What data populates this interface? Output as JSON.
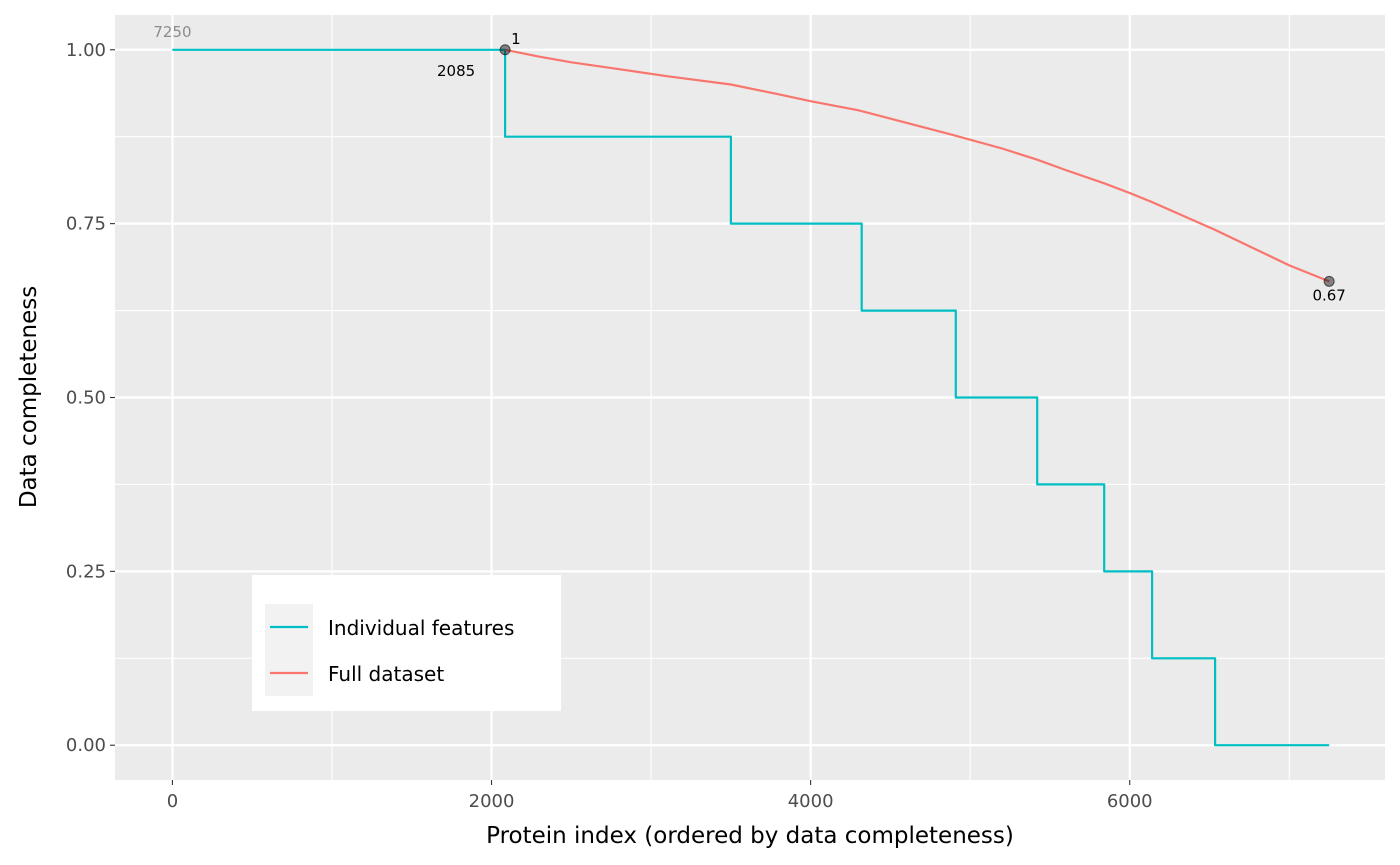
{
  "chart_data": {
    "type": "line",
    "title": "",
    "xlabel": "Protein index (ordered by data completeness)",
    "ylabel": "Data completeness",
    "xlim": [
      -360,
      7600
    ],
    "ylim": [
      -0.05,
      1.05
    ],
    "x_ticks": [
      0,
      2000,
      4000,
      6000
    ],
    "x_tick_labels": [
      "0",
      "2000",
      "4000",
      "6000"
    ],
    "y_ticks": [
      0,
      0.25,
      0.5,
      0.75,
      1.0
    ],
    "y_tick_labels": [
      "0.00",
      "0.25",
      "0.50",
      "0.75",
      "1.00"
    ],
    "grid": true,
    "background": "#ebebeb",
    "legend_position": "bottom-left inside",
    "series": [
      {
        "name": "Individual features",
        "color": "#00bfc4",
        "line_style": "step",
        "points": [
          [
            0,
            1.0
          ],
          [
            2085,
            1.0
          ],
          [
            2085,
            0.875
          ],
          [
            3500,
            0.875
          ],
          [
            3500,
            0.75
          ],
          [
            4320,
            0.75
          ],
          [
            4320,
            0.625
          ],
          [
            4910,
            0.625
          ],
          [
            4910,
            0.5
          ],
          [
            5420,
            0.5
          ],
          [
            5420,
            0.375
          ],
          [
            5840,
            0.375
          ],
          [
            5840,
            0.25
          ],
          [
            6140,
            0.25
          ],
          [
            6140,
            0.125
          ],
          [
            6535,
            0.125
          ],
          [
            6535,
            0.0
          ],
          [
            7250,
            0.0
          ]
        ]
      },
      {
        "name": "Full dataset",
        "color": "#f8766d",
        "line_style": "line",
        "points": [
          [
            2085,
            1.0
          ],
          [
            2300,
            0.99
          ],
          [
            2500,
            0.982
          ],
          [
            2800,
            0.972
          ],
          [
            3100,
            0.962
          ],
          [
            3500,
            0.95
          ],
          [
            3800,
            0.936
          ],
          [
            4000,
            0.926
          ],
          [
            4300,
            0.913
          ],
          [
            4600,
            0.895
          ],
          [
            4900,
            0.877
          ],
          [
            5200,
            0.858
          ],
          [
            5420,
            0.842
          ],
          [
            5600,
            0.827
          ],
          [
            5840,
            0.808
          ],
          [
            6000,
            0.794
          ],
          [
            6140,
            0.781
          ],
          [
            6535,
            0.741
          ],
          [
            6800,
            0.712
          ],
          [
            7000,
            0.69
          ],
          [
            7250,
            0.667
          ]
        ]
      }
    ],
    "highlight_points": [
      {
        "x": 2085,
        "y": 1.0
      },
      {
        "x": 7250,
        "y": 0.667
      }
    ],
    "annotations": [
      {
        "text": "7250",
        "x": 0,
        "y": 1.0,
        "style": "grey"
      },
      {
        "text": "2085",
        "x": 2085,
        "y": 1.0,
        "style": "below-left"
      },
      {
        "text": "1",
        "x": 2085,
        "y": 1.0,
        "style": "above-right"
      },
      {
        "text": "0.67",
        "x": 7250,
        "y": 0.667,
        "style": "below"
      }
    ]
  }
}
